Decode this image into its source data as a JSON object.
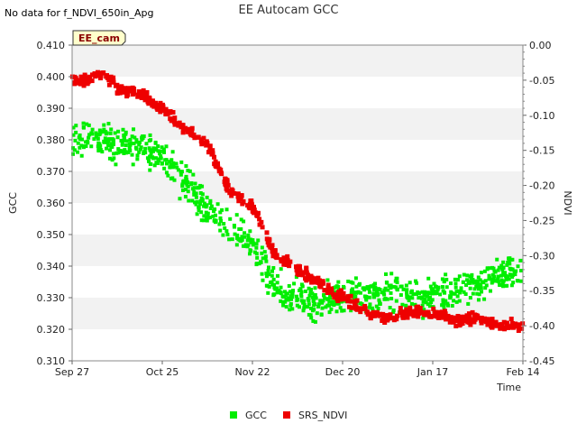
{
  "no_data_text": "No data for f_NDVI_650in_Apg",
  "badge_label": "EE_cam",
  "chart_data": {
    "type": "scatter",
    "title": "EE Autocam GCC",
    "xlabel": "Time",
    "ylabel": "GCC",
    "y2label": "NDVI",
    "x_tick_labels": [
      "Sep 27",
      "Oct 25",
      "Nov 22",
      "Dec 20",
      "Jan 17",
      "Feb 14"
    ],
    "xlim_days": [
      0,
      140
    ],
    "ylim": [
      0.31,
      0.41
    ],
    "y_ticks": [
      "0.310",
      "0.320",
      "0.330",
      "0.340",
      "0.350",
      "0.360",
      "0.370",
      "0.380",
      "0.390",
      "0.400",
      "0.410"
    ],
    "y2lim": [
      -0.45,
      0.0
    ],
    "y2_ticks": [
      "0.00",
      "-0.05",
      "-0.10",
      "-0.15",
      "-0.20",
      "-0.25",
      "-0.30",
      "-0.35",
      "-0.40",
      "-0.45"
    ],
    "grid": "horizontal bands",
    "legend": "bottom-center",
    "series": [
      {
        "name": "GCC",
        "color": "#00ee00",
        "axis": "left",
        "trend": [
          [
            0,
            0.38
          ],
          [
            7,
            0.381
          ],
          [
            14,
            0.378
          ],
          [
            21,
            0.378
          ],
          [
            28,
            0.374
          ],
          [
            35,
            0.366
          ],
          [
            42,
            0.358
          ],
          [
            49,
            0.352
          ],
          [
            56,
            0.347
          ],
          [
            63,
            0.333
          ],
          [
            70,
            0.33
          ],
          [
            77,
            0.329
          ],
          [
            84,
            0.33
          ],
          [
            91,
            0.331
          ],
          [
            98,
            0.332
          ],
          [
            105,
            0.33
          ],
          [
            112,
            0.33
          ],
          [
            119,
            0.332
          ],
          [
            126,
            0.335
          ],
          [
            133,
            0.337
          ],
          [
            140,
            0.338
          ]
        ],
        "spread": 0.008
      },
      {
        "name": "SRS_NDVI",
        "color": "#ee0000",
        "axis": "right",
        "trend": [
          [
            0,
            -0.05
          ],
          [
            5,
            -0.05
          ],
          [
            10,
            -0.04
          ],
          [
            14,
            -0.06
          ],
          [
            21,
            -0.07
          ],
          [
            28,
            -0.09
          ],
          [
            35,
            -0.12
          ],
          [
            42,
            -0.14
          ],
          [
            49,
            -0.21
          ],
          [
            56,
            -0.23
          ],
          [
            63,
            -0.3
          ],
          [
            70,
            -0.32
          ],
          [
            77,
            -0.34
          ],
          [
            84,
            -0.36
          ],
          [
            91,
            -0.38
          ],
          [
            98,
            -0.39
          ],
          [
            105,
            -0.38
          ],
          [
            112,
            -0.38
          ],
          [
            119,
            -0.39
          ],
          [
            126,
            -0.39
          ],
          [
            133,
            -0.4
          ],
          [
            140,
            -0.4
          ]
        ],
        "spread": 0.012
      }
    ]
  }
}
